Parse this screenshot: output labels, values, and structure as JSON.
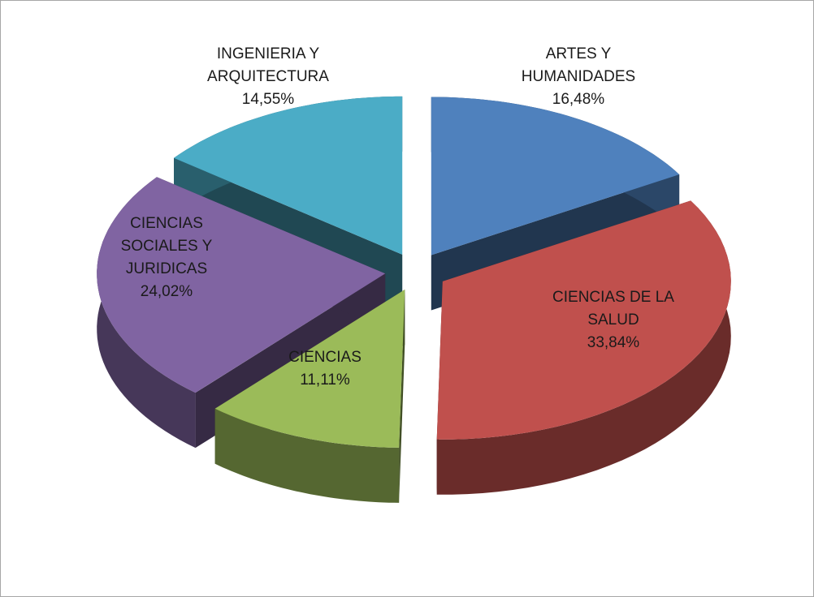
{
  "chart_data": {
    "type": "pie3d",
    "categories": [
      "ARTES Y HUMANIDADES",
      "CIENCIAS DE LA SALUD",
      "CIENCIAS",
      "CIENCIAS SOCIALES Y JURIDICAS",
      "INGENIERIA Y ARQUITECTURA"
    ],
    "values": [
      16.48,
      33.84,
      11.11,
      24.02,
      14.55
    ],
    "value_labels": [
      "16,48%",
      "33,84%",
      "11,11%",
      "24,02%",
      "14,55%"
    ],
    "colors": [
      "#4f81bd",
      "#c0504d",
      "#9bbb59",
      "#8064a2",
      "#4bacc6"
    ],
    "exploded": true
  }
}
